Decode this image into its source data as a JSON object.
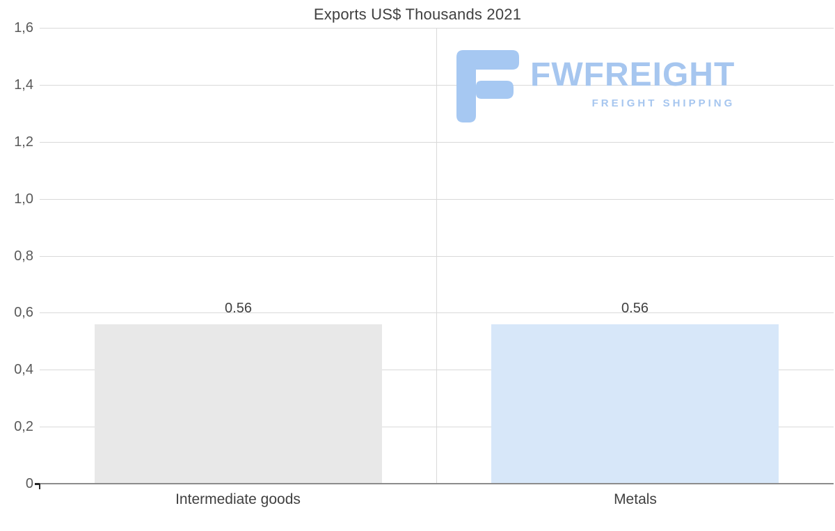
{
  "chart_data": {
    "type": "bar",
    "title": "Exports US$ Thousands 2021",
    "categories": [
      "Intermediate goods",
      "Metals"
    ],
    "values": [
      0.56,
      0.56
    ],
    "value_labels": [
      "0.56",
      "0.56"
    ],
    "bar_colors": [
      "#e8e8e8",
      "#d7e7f9"
    ],
    "ylim": [
      0,
      1.6
    ],
    "ytick_step": 0.2,
    "ytick_labels": [
      "1,6",
      "1,4",
      "1,2",
      "1,0",
      "0,8",
      "0,6",
      "0,4",
      "0,2",
      "0"
    ],
    "grid": "horizontal-and-center-vertical",
    "legend": "none",
    "gridline_color": "#d9d9d9",
    "axis_color": "#8c8c8c",
    "text_color": "#404040",
    "tick_text_color": "#595959"
  },
  "watermark": {
    "text": "FWFREIGHT",
    "subtext": "FREIGHT SHIPPING",
    "color": "#a6c6ef",
    "icon": "fwfreight-f-logo"
  }
}
